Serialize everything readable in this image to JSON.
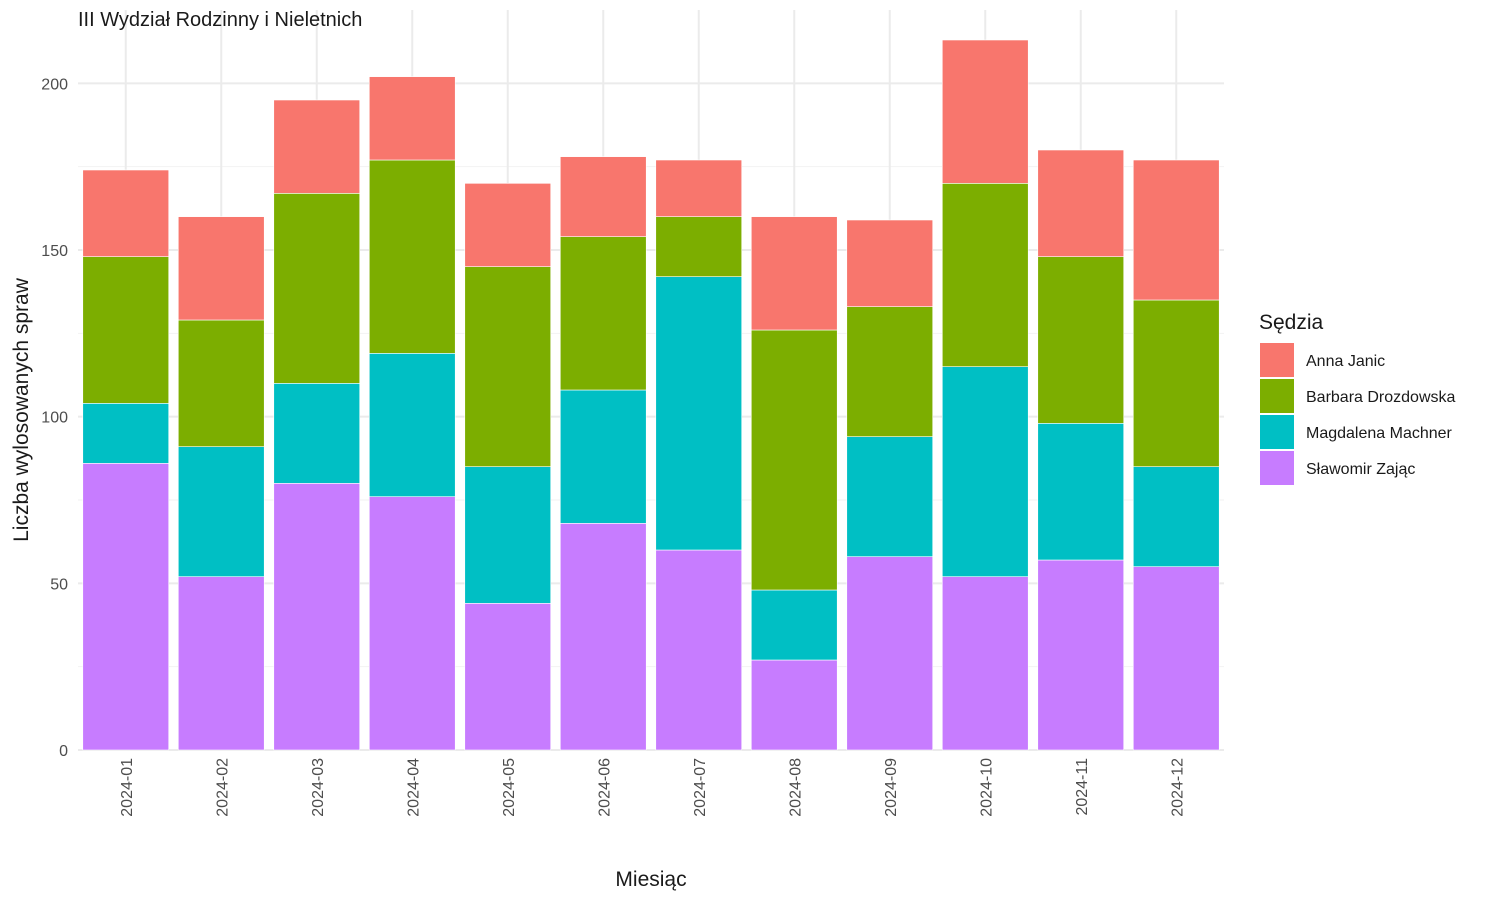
{
  "chart_data": {
    "type": "bar",
    "stacked": true,
    "title": "III Wydział Rodzinny i Nieletnich",
    "xlabel": "Miesiąc",
    "ylabel": "Liczba wylosowanych spraw",
    "ylim": [
      0,
      222
    ],
    "yticks": [
      0,
      50,
      100,
      150,
      200
    ],
    "categories": [
      "2024-01",
      "2024-02",
      "2024-03",
      "2024-04",
      "2024-05",
      "2024-06",
      "2024-07",
      "2024-08",
      "2024-09",
      "2024-10",
      "2024-11",
      "2024-12"
    ],
    "legend_title": "Sędzia",
    "legend_position": "right",
    "grid": true,
    "series": [
      {
        "name": "Sławomir Zając",
        "color": "#C77CFF",
        "values": [
          86,
          52,
          80,
          76,
          44,
          68,
          60,
          27,
          58,
          52,
          57,
          55
        ]
      },
      {
        "name": "Magdalena Machner",
        "color": "#00BFC4",
        "values": [
          18,
          39,
          30,
          43,
          41,
          40,
          82,
          21,
          36,
          63,
          41,
          30
        ]
      },
      {
        "name": "Barbara Drozdowska",
        "color": "#7CAE00",
        "values": [
          44,
          38,
          57,
          58,
          60,
          46,
          18,
          78,
          39,
          55,
          50,
          50
        ]
      },
      {
        "name": "Anna Janic",
        "color": "#F8766D",
        "values": [
          26,
          31,
          28,
          25,
          25,
          24,
          17,
          34,
          26,
          43,
          32,
          42
        ]
      }
    ],
    "legend_order": [
      "Anna Janic",
      "Barbara Drozdowska",
      "Magdalena Machner",
      "Sławomir Zając"
    ]
  }
}
